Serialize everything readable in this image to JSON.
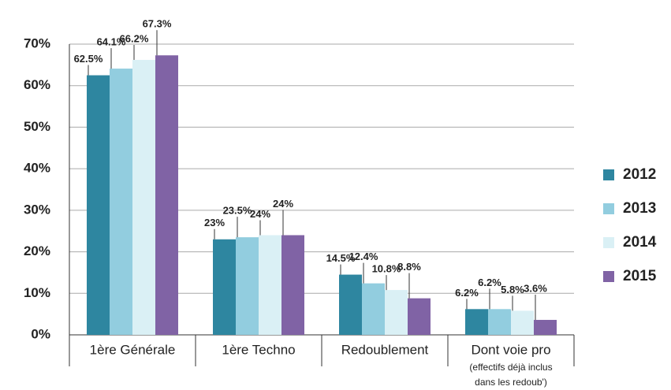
{
  "chart_data": {
    "type": "bar",
    "categories": [
      "1ère Générale",
      "1ère Techno",
      "Redoublement",
      "Dont voie pro"
    ],
    "notes": [
      "(effectifs déjà inclus",
      "dans les redoub')"
    ],
    "series": [
      {
        "name": "2012",
        "color": "#2e86a0",
        "values": [
          62.5,
          23,
          14.5,
          6.2
        ],
        "value_labels": [
          "62.5%",
          "23%",
          "14.5%",
          "6.2%"
        ]
      },
      {
        "name": "2013",
        "color": "#92cddf",
        "values": [
          64.1,
          23.5,
          12.4,
          6.2
        ],
        "value_labels": [
          "64.1%",
          "23.5%",
          "12.4%",
          "6.2%"
        ]
      },
      {
        "name": "2014",
        "color": "#daf0f5",
        "values": [
          66.2,
          24,
          10.8,
          5.8
        ],
        "value_labels": [
          "66.2%",
          "24%",
          "10.8%",
          "5.8%"
        ]
      },
      {
        "name": "2015",
        "color": "#8063a5",
        "values": [
          67.3,
          24,
          8.8,
          3.6
        ],
        "value_labels": [
          "67.3%",
          "24%",
          "8.8%",
          "3.6%"
        ]
      }
    ],
    "ylim": [
      0,
      70
    ],
    "yticks": [
      {
        "value": 0,
        "label": "0%"
      },
      {
        "value": 10,
        "label": "10%"
      },
      {
        "value": 20,
        "label": "20%"
      },
      {
        "value": 30,
        "label": "30%"
      },
      {
        "value": 40,
        "label": "40%"
      },
      {
        "value": 50,
        "label": "50%"
      },
      {
        "value": 60,
        "label": "60%"
      },
      {
        "value": 70,
        "label": "70%"
      }
    ],
    "grid": true,
    "legend": "right"
  }
}
